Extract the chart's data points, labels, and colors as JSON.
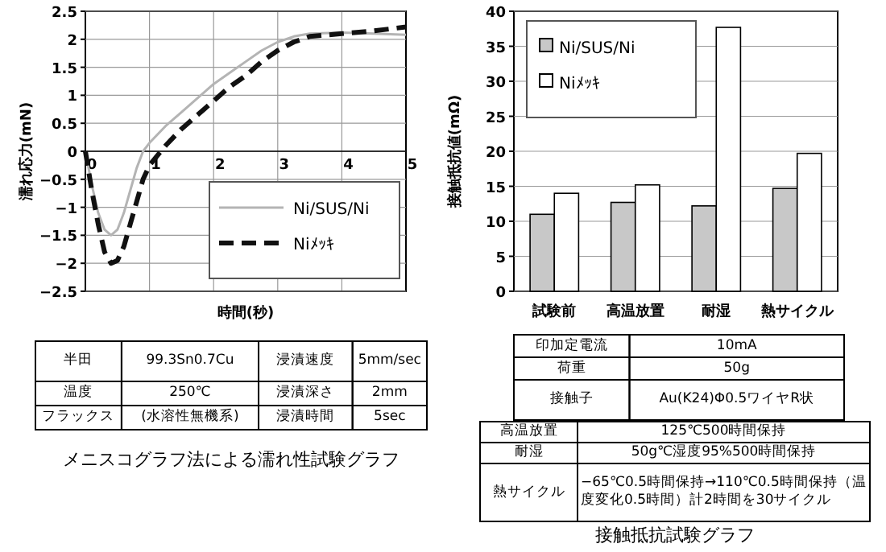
{
  "chart_data": [
    {
      "type": "line",
      "xlabel": "時間(秒)",
      "ylabel": "濡れ応力(mN)",
      "xlim": [
        0,
        5
      ],
      "ylim": [
        -2.5,
        2.5
      ],
      "xticks": [
        0,
        1,
        2,
        3,
        4,
        5
      ],
      "yticks": [
        2.5,
        2,
        1.5,
        1,
        0.5,
        0,
        -0.5,
        -1,
        -1.5,
        -2,
        -2.5
      ],
      "grid": true,
      "legend": "bottom right",
      "x": [
        0,
        0.1,
        0.2,
        0.3,
        0.4,
        0.5,
        0.6,
        0.7,
        0.8,
        0.9,
        1,
        1.25,
        1.5,
        1.75,
        2,
        2.25,
        2.5,
        2.75,
        3,
        3.25,
        3.5,
        4,
        4.5,
        5
      ],
      "series": [
        {
          "name": "Ni/SUS/Ni",
          "color": "#b4b4b4",
          "line_style": "solid",
          "values": [
            0,
            -0.6,
            -1.1,
            -1.4,
            -1.5,
            -1.4,
            -1.1,
            -0.7,
            -0.3,
            0,
            0.15,
            0.45,
            0.7,
            0.95,
            1.2,
            1.4,
            1.6,
            1.8,
            1.95,
            2.05,
            2.1,
            2.12,
            2.1,
            2.08
          ]
        },
        {
          "name": "Niﾒｯｷ",
          "color": "#111111",
          "line_style": "dashed",
          "values": [
            0,
            -0.7,
            -1.3,
            -1.8,
            -2,
            -1.95,
            -1.7,
            -1.3,
            -0.9,
            -0.5,
            -0.25,
            0.1,
            0.4,
            0.65,
            0.9,
            1.15,
            1.35,
            1.6,
            1.8,
            1.95,
            2.05,
            2.1,
            2.15,
            2.22
          ]
        }
      ]
    },
    {
      "type": "other",
      "title": "メニスコグラフ法による濡れ性試験グラフ",
      "annotations": [
        "半田",
        "99.3Sn0.7Cu",
        "浸漬速度",
        "5mm/sec",
        "温度",
        "250℃",
        "浸漬深さ",
        "2mm",
        "フラックス",
        "(水溶性無機系)",
        "浸漬時間",
        "5sec"
      ]
    },
    {
      "type": "bar",
      "ylabel": "接触抵抗値(mΩ)",
      "categories": [
        "試験前",
        "高温放置",
        "耐湿",
        "熱サイクル"
      ],
      "ylim": [
        0,
        40
      ],
      "yticks": [
        0,
        5,
        10,
        15,
        20,
        25,
        30,
        35,
        40
      ],
      "grid": "y",
      "legend": "top left",
      "series": [
        {
          "name": "Ni/SUS/Ni",
          "color": "#c8c8c8",
          "values": [
            11,
            12.7,
            12.2,
            14.7
          ]
        },
        {
          "name": "Niﾒｯｷ",
          "color": "#ffffff",
          "values": [
            14,
            15.2,
            37.7,
            19.7
          ]
        }
      ]
    },
    {
      "type": "other",
      "annotations": [
        "印加定電流",
        "10mA",
        "荷重",
        "50g",
        "接触子",
        "Au(K24)Φ0.5ワイヤR状"
      ]
    },
    {
      "type": "other",
      "title": "接触抵抗試験グラフ",
      "annotations": [
        "高温放置",
        "125℃500時間保持",
        "耐湿",
        "50g℃湿度95%500時間保持",
        "熱サイクル",
        "−65℃0.5時間保持→110℃0.5時間保持（温度変化0.5時間）計2時間を30サイクル"
      ]
    }
  ]
}
